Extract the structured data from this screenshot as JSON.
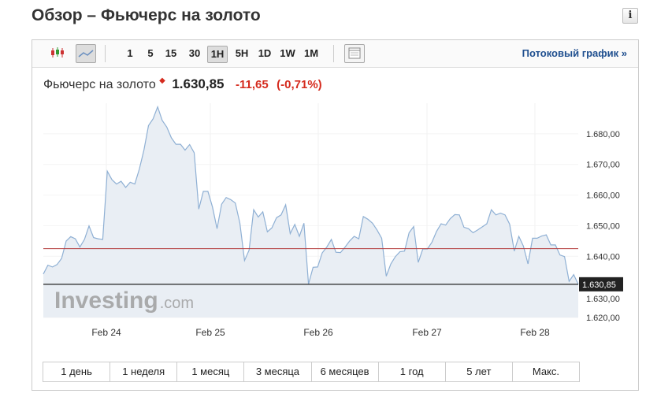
{
  "title": "Обзор – Фьючерс на золото",
  "info_icon": "info-icon",
  "toolbar": {
    "chart_types": [
      "candlestick-icon",
      "line-chart-icon"
    ],
    "selected_chart_type": "line-chart-icon",
    "intervals": [
      "1",
      "5",
      "15",
      "30",
      "1H",
      "5H",
      "1D",
      "1W",
      "1M"
    ],
    "selected_interval": "1H",
    "layout_icon": "table-icon",
    "stream_label": "Потоковый график »"
  },
  "quote": {
    "name": "Фьючерс на золото",
    "price": "1.630,85",
    "change": "-11,65",
    "change_pct": "(-0,71%)",
    "change_color": "#d52b1e"
  },
  "watermark": "Investing.com",
  "ranges": [
    "1 день",
    "1 неделя",
    "1 месяц",
    "3 месяца",
    "6 месяцев",
    "1 год",
    "5 лет",
    "Макс."
  ],
  "chart_data": {
    "type": "area",
    "interval": "1H",
    "x_tick_labels": [
      "Feb 24",
      "Feb 25",
      "Feb 26",
      "Feb 27",
      "Feb 28"
    ],
    "y_tick_labels": [
      "1.620,00",
      "1.630,00",
      "1.640,00",
      "1.650,00",
      "1.660,00",
      "1.670,00",
      "1.680,00"
    ],
    "ylim": [
      1620,
      1690
    ],
    "last_price": 1630.85,
    "last_price_label": "1.630,85",
    "reference_line": 1642.5,
    "line_color": "#8fb0d4",
    "fill_color": "#e9eef4",
    "reference_color": "#b33a3a",
    "values": [
      1634.2,
      1637.1,
      1636.5,
      1637.3,
      1639.3,
      1645,
      1646.4,
      1645.7,
      1643,
      1645.5,
      1649.9,
      1646.1,
      1645.7,
      1645.5,
      1667.8,
      1665,
      1663.6,
      1664.5,
      1662.5,
      1664.2,
      1663.6,
      1668.5,
      1674.7,
      1682.7,
      1684.9,
      1688.8,
      1684.4,
      1682.2,
      1678.7,
      1676.6,
      1676.6,
      1674.7,
      1676.5,
      1673.8,
      1655.4,
      1661.2,
      1661.2,
      1656.1,
      1649,
      1657,
      1659.2,
      1658.5,
      1657.4,
      1650.8,
      1638.6,
      1642,
      1655.2,
      1652.8,
      1654.5,
      1648,
      1649.3,
      1652.6,
      1653.5,
      1656.8,
      1647.4,
      1650.4,
      1646.5,
      1650.8,
      1630.9,
      1636.4,
      1636.5,
      1641.1,
      1643,
      1645.5,
      1641.3,
      1641.2,
      1643,
      1645,
      1646.5,
      1645.7,
      1653,
      1652.1,
      1650.8,
      1648.6,
      1645.9,
      1633.5,
      1637.5,
      1639.9,
      1641.5,
      1641.7,
      1647.7,
      1649.7,
      1638,
      1642.4,
      1642.4,
      1644.6,
      1648.1,
      1650.6,
      1650.2,
      1652.3,
      1653.6,
      1653.5,
      1649.5,
      1649,
      1647.7,
      1648.6,
      1649.6,
      1650.6,
      1655.2,
      1653.5,
      1654.1,
      1653.5,
      1650.5,
      1641.7,
      1646.5,
      1643.3,
      1637.5,
      1645.9,
      1645.9,
      1646.6,
      1647,
      1643.7,
      1643.7,
      1640.4,
      1639.9,
      1631.8,
      1634,
      1630.85
    ]
  }
}
